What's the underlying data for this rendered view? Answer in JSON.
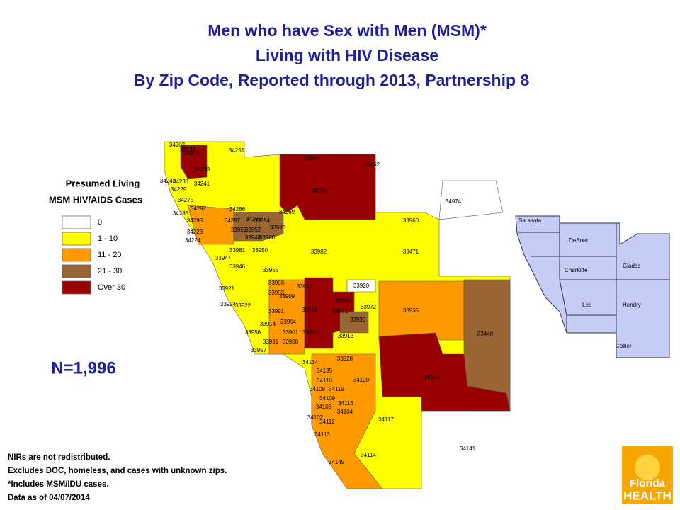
{
  "header": {
    "title": [
      "Men who have Sex with Men (MSM)*",
      "Living with HIV Disease",
      "By Zip Code, Reported through 2013, Partnership 8"
    ]
  },
  "legend": {
    "title": [
      "Presumed Living",
      "MSM HIV/AIDS Cases"
    ],
    "items": [
      {
        "label": "0",
        "color": "#ffffff"
      },
      {
        "label": "1 - 10",
        "color": "#ffff00"
      },
      {
        "label": "11 - 20",
        "color": "#ff9900"
      },
      {
        "label": "21 - 30",
        "color": "#996633"
      },
      {
        "label": "Over 30",
        "color": "#990000"
      }
    ]
  },
  "total": "N=1,996",
  "notes": [
    "NIRs are not redistributed.",
    "Excludes DOC, homeless, and cases with unknown zips.",
    "*Includes MSM/IDU cases.",
    "Data as of 04/07/2014"
  ],
  "zip_labels": [
    "34202",
    "34240",
    "34251",
    "34235",
    "34233",
    "34241",
    "34238",
    "34242",
    "34229",
    "34275",
    "34292",
    "34285",
    "34286",
    "34293",
    "34287",
    "34288",
    "34223",
    "33954",
    "33953",
    "33952",
    "33983",
    "34224",
    "33948",
    "33980",
    "33981",
    "33950",
    "33947",
    "33946",
    "33955",
    "33982",
    "33471",
    "34265",
    "33865",
    "33852",
    "34269",
    "34974",
    "33960",
    "33921",
    "33903",
    "33917",
    "33920",
    "33993",
    "33909",
    "33905",
    "33924",
    "33922",
    "33991",
    "33916",
    "33971",
    "33972",
    "33935",
    "33904",
    "33914",
    "33936",
    "33956",
    "33901",
    "33912",
    "33440",
    "33931",
    "33908",
    "33913",
    "33957",
    "33928",
    "34134",
    "34135",
    "34142",
    "34120",
    "34110",
    "34108",
    "34119",
    "34109",
    "34116",
    "34103",
    "34104",
    "34117",
    "34102",
    "34112",
    "34113",
    "34141",
    "34114",
    "34145"
  ],
  "county_labels": [
    "Sarasota",
    "DeSoto",
    "Charlotte",
    "Glades",
    "Lee",
    "Hendry",
    "Collier"
  ],
  "logo": [
    "Florida",
    "HEALTH"
  ]
}
